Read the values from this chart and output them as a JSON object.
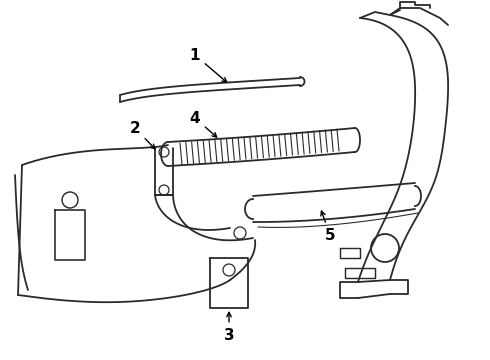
{
  "bg_color": "#ffffff",
  "line_color": "#2a2a2a",
  "label_color": "#000000"
}
